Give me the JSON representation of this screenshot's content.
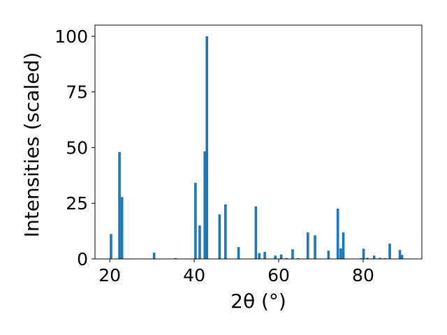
{
  "chart_data": {
    "type": "bar",
    "title": "",
    "xlabel": "2θ (°)",
    "ylabel": "Intensities (scaled)",
    "xlim": [
      16.5,
      93.9
    ],
    "ylim": [
      0,
      105
    ],
    "xticks": [
      20,
      40,
      60,
      80
    ],
    "yticks": [
      0,
      25,
      50,
      75,
      100
    ],
    "bar_width": 0.6,
    "color": "#1f77b4",
    "grid": false,
    "legend": "none",
    "x": [
      20.3,
      22.3,
      22.9,
      30.5,
      35.6,
      40.3,
      41.3,
      42.5,
      43.0,
      46.0,
      47.4,
      50.5,
      54.6,
      55.4,
      56.7,
      59.2,
      60.6,
      61.8,
      63.3,
      64.6,
      66.9,
      68.6,
      71.8,
      74.0,
      74.7,
      75.3,
      79.5,
      80.1,
      81.0,
      82.6,
      84.0,
      85.2,
      86.3,
      88.7,
      89.2
    ],
    "values": [
      11.2,
      48.0,
      27.8,
      2.8,
      0.4,
      34.2,
      15.0,
      48.3,
      100.0,
      20.0,
      24.5,
      5.3,
      23.6,
      2.6,
      3.2,
      1.5,
      2.0,
      0.4,
      4.3,
      0.3,
      11.9,
      10.6,
      3.7,
      22.6,
      4.7,
      11.9,
      0.3,
      4.6,
      0.5,
      1.5,
      0.5,
      0.3,
      6.9,
      4.0,
      1.8
    ]
  }
}
